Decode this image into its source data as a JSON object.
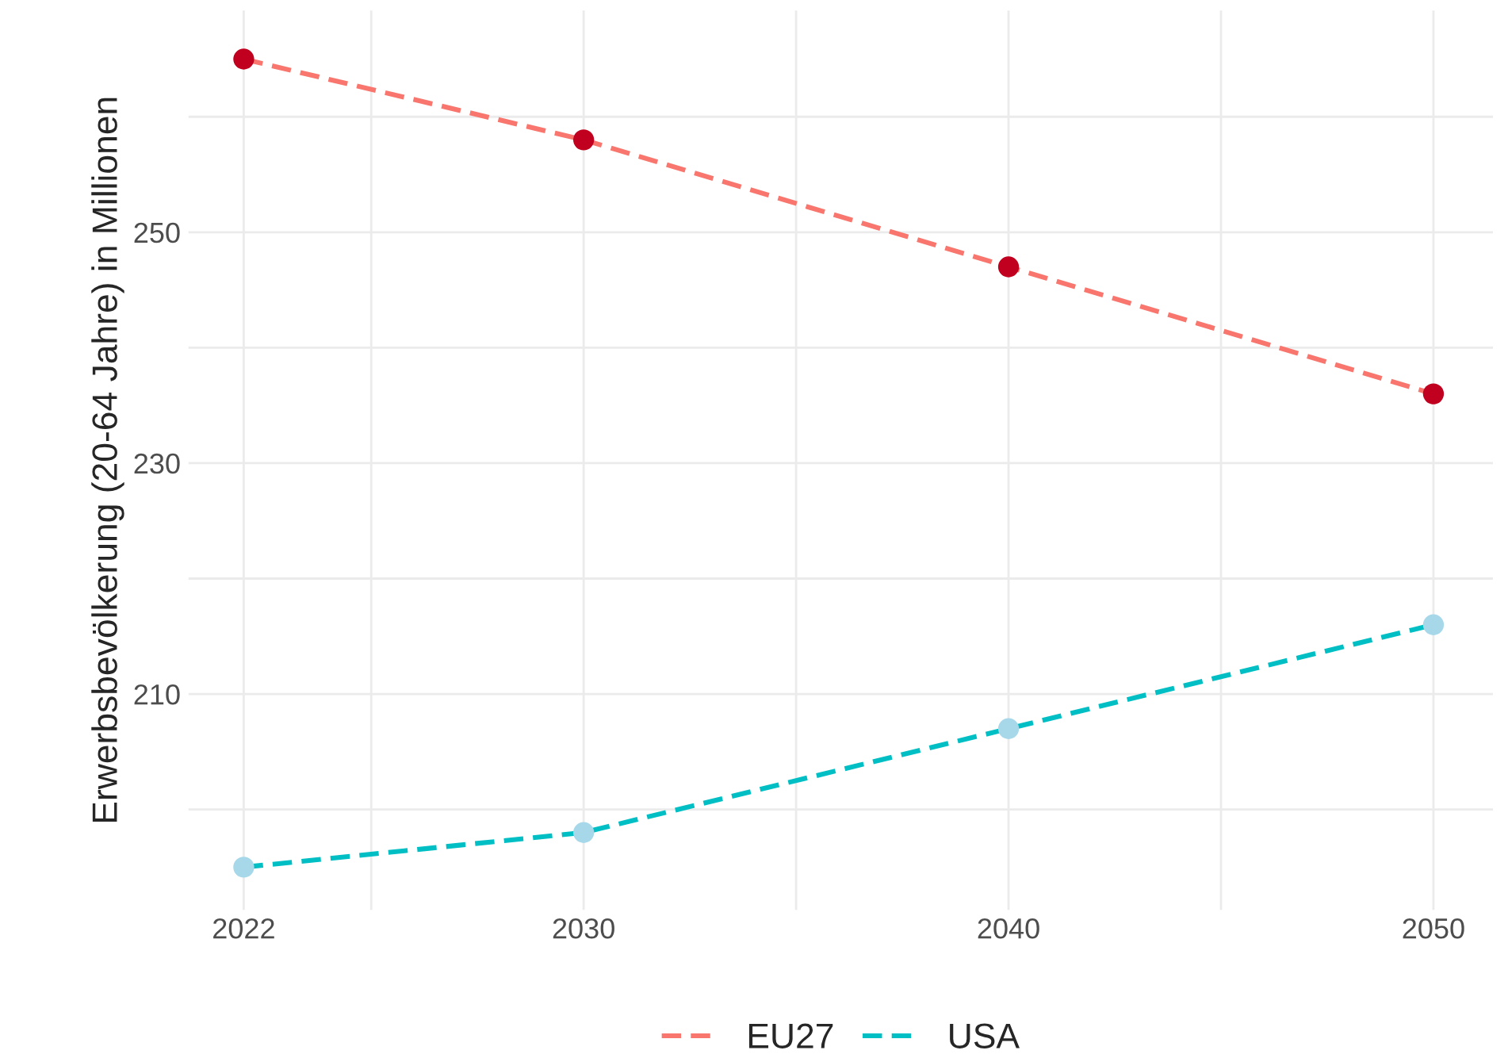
{
  "chart_data": {
    "type": "line",
    "ylabel": "Erwerbsbevölkerung (20-64 Jahre) in Millionen",
    "x": [
      2022,
      2030,
      2040,
      2050
    ],
    "series": [
      {
        "name": "EU27",
        "color": "#f8766d",
        "values": [
          265,
          258,
          247,
          236
        ],
        "line_style": "dashed"
      },
      {
        "name": "USA",
        "color": "#00bfc4",
        "values": [
          195,
          198,
          207,
          216
        ],
        "line_style": "dashed"
      },
      {
        "type": "scatter",
        "color": "#c0001e",
        "values": [
          265,
          258,
          247,
          236
        ],
        "marker": "circle"
      },
      {
        "type": "scatter",
        "color": "#a6d8ea",
        "values": [
          195,
          198,
          207,
          216
        ],
        "marker": "circle"
      }
    ],
    "xlim": [
      2020.7,
      2051.4
    ],
    "ylim": [
      191.3,
      269.2
    ],
    "xticks": [
      2022,
      {
        "value": 2025,
        "label": null
      },
      2030,
      {
        "value": 2035,
        "label": null
      },
      2040,
      {
        "value": 2045,
        "label": null
      },
      2050
    ],
    "yticks": [
      {
        "value": 200,
        "label": null
      },
      210,
      {
        "value": 220,
        "label": null
      },
      230,
      {
        "value": 240,
        "label": null
      },
      250,
      {
        "value": 260,
        "label": null
      }
    ],
    "grid": true,
    "legend": "bottom"
  }
}
